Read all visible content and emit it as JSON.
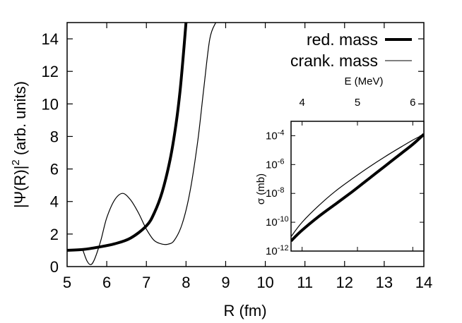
{
  "chart_data": [
    {
      "type": "line",
      "xlabel": "R (fm)",
      "ylabel_main": "|Ψ(R)|",
      "ylabel_sup": "2",
      "ylabel_rest": " (arb. units)",
      "xlim": [
        5,
        14
      ],
      "ylim": [
        0,
        15
      ],
      "xticks": [
        "5",
        "6",
        "7",
        "8",
        "9",
        "10",
        "11",
        "12",
        "13",
        "14"
      ],
      "yticks": [
        "0",
        "2",
        "4",
        "6",
        "8",
        "10",
        "12",
        "14"
      ],
      "legend": {
        "position": "top-right"
      },
      "series": [
        {
          "name": "red. mass",
          "style": "thick",
          "x": [
            5.0,
            5.4,
            5.8,
            6.2,
            6.6,
            7.0,
            7.2,
            7.4,
            7.6,
            7.75,
            7.85,
            7.95,
            8.0
          ],
          "y": [
            1.0,
            1.05,
            1.2,
            1.4,
            1.75,
            2.5,
            3.3,
            4.6,
            6.6,
            8.8,
            10.8,
            13.5,
            15.0
          ]
        },
        {
          "name": "crank. mass",
          "style": "thin",
          "x": [
            5.4,
            5.5,
            5.6,
            5.7,
            5.85,
            6.0,
            6.2,
            6.4,
            6.6,
            6.8,
            7.0,
            7.2,
            7.4,
            7.55,
            7.7,
            7.9,
            8.1,
            8.3,
            8.45,
            8.6,
            8.75
          ],
          "y": [
            1.0,
            0.35,
            0.12,
            0.5,
            1.6,
            3.0,
            4.1,
            4.5,
            4.1,
            3.3,
            2.3,
            1.6,
            1.38,
            1.38,
            1.6,
            2.6,
            4.6,
            7.8,
            11.0,
            14.0,
            15.0
          ]
        }
      ]
    },
    {
      "type": "line",
      "title": "inset",
      "xlabel": "E (MeV)",
      "ylabel": "σ (mb)",
      "xlim": [
        3.8,
        6.2
      ],
      "ylim_log10": [
        -12,
        -3
      ],
      "xticks": [
        "4",
        "5",
        "6"
      ],
      "yticks": [
        {
          "base": "10",
          "exp": "-4"
        },
        {
          "base": "10",
          "exp": "-6"
        },
        {
          "base": "10",
          "exp": "-8"
        },
        {
          "base": "10",
          "exp": "-10"
        },
        {
          "base": "10",
          "exp": "-12"
        }
      ],
      "series": [
        {
          "name": "red. mass",
          "style": "thick",
          "x": [
            3.8,
            4.0,
            4.3,
            4.6,
            4.9,
            5.2,
            5.5,
            5.8,
            6.0,
            6.2
          ],
          "log10_y": [
            -11.3,
            -10.55,
            -9.6,
            -8.75,
            -7.9,
            -7.0,
            -6.1,
            -5.2,
            -4.6,
            -3.9
          ]
        },
        {
          "name": "crank. mass",
          "style": "thin",
          "x": [
            3.8,
            4.0,
            4.3,
            4.6,
            4.9,
            5.2,
            5.5,
            5.8,
            6.0,
            6.2
          ],
          "log10_y": [
            -11.0,
            -10.0,
            -8.85,
            -7.85,
            -7.0,
            -6.2,
            -5.45,
            -4.75,
            -4.3,
            -3.9
          ]
        }
      ]
    }
  ]
}
